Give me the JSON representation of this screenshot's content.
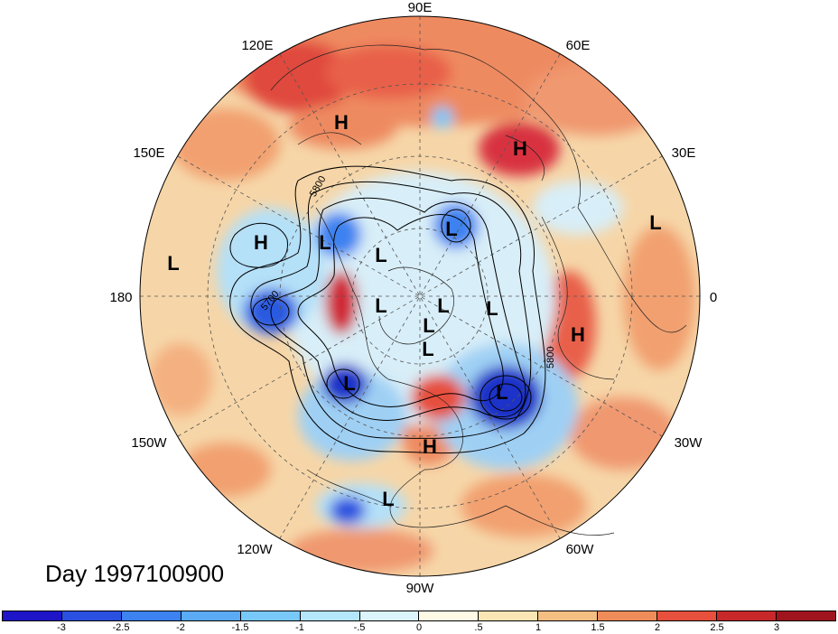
{
  "map": {
    "projection": "north-polar-stereographic",
    "longitude_labels": {
      "top": "90E",
      "top_left": "120E",
      "top_right": "60E",
      "upper_left": "150E",
      "upper_right": "30E",
      "left": "180",
      "right": "0",
      "lower_left": "150W",
      "lower_right": "30W",
      "bottom_left": "120W",
      "bottom_right": "60W",
      "bottom": "90W"
    },
    "contour_labels": {
      "c1": "5800",
      "c2": "5700",
      "c3": "5800"
    },
    "pressure_centers": {
      "h1": "H",
      "h2": "H",
      "h3": "H",
      "h4": "H",
      "h5": "H",
      "l1": "L",
      "l2": "L",
      "l3": "L",
      "l4": "L",
      "l5": "L",
      "l6": "L",
      "l7": "L",
      "l8": "L",
      "l9": "L",
      "l10": "L",
      "l11": "L",
      "l12": "L",
      "l13": "L"
    }
  },
  "title": {
    "day_label": "Day 1997100900"
  },
  "colorbar": {
    "colors": [
      "#1e14c8",
      "#2a50e0",
      "#3c82f0",
      "#5aaaf5",
      "#78c8fa",
      "#b4e6fc",
      "#dcf5fc",
      "#fffae6",
      "#fae6b4",
      "#f5be82",
      "#f08c5a",
      "#e6503c",
      "#c8282a",
      "#a0141e"
    ],
    "ticks": [
      "-3",
      "-2.5",
      "-2",
      "-1.5",
      "-1",
      "-.5",
      "0",
      ".5",
      "1",
      "1.5",
      "2",
      "2.5",
      "3"
    ]
  }
}
